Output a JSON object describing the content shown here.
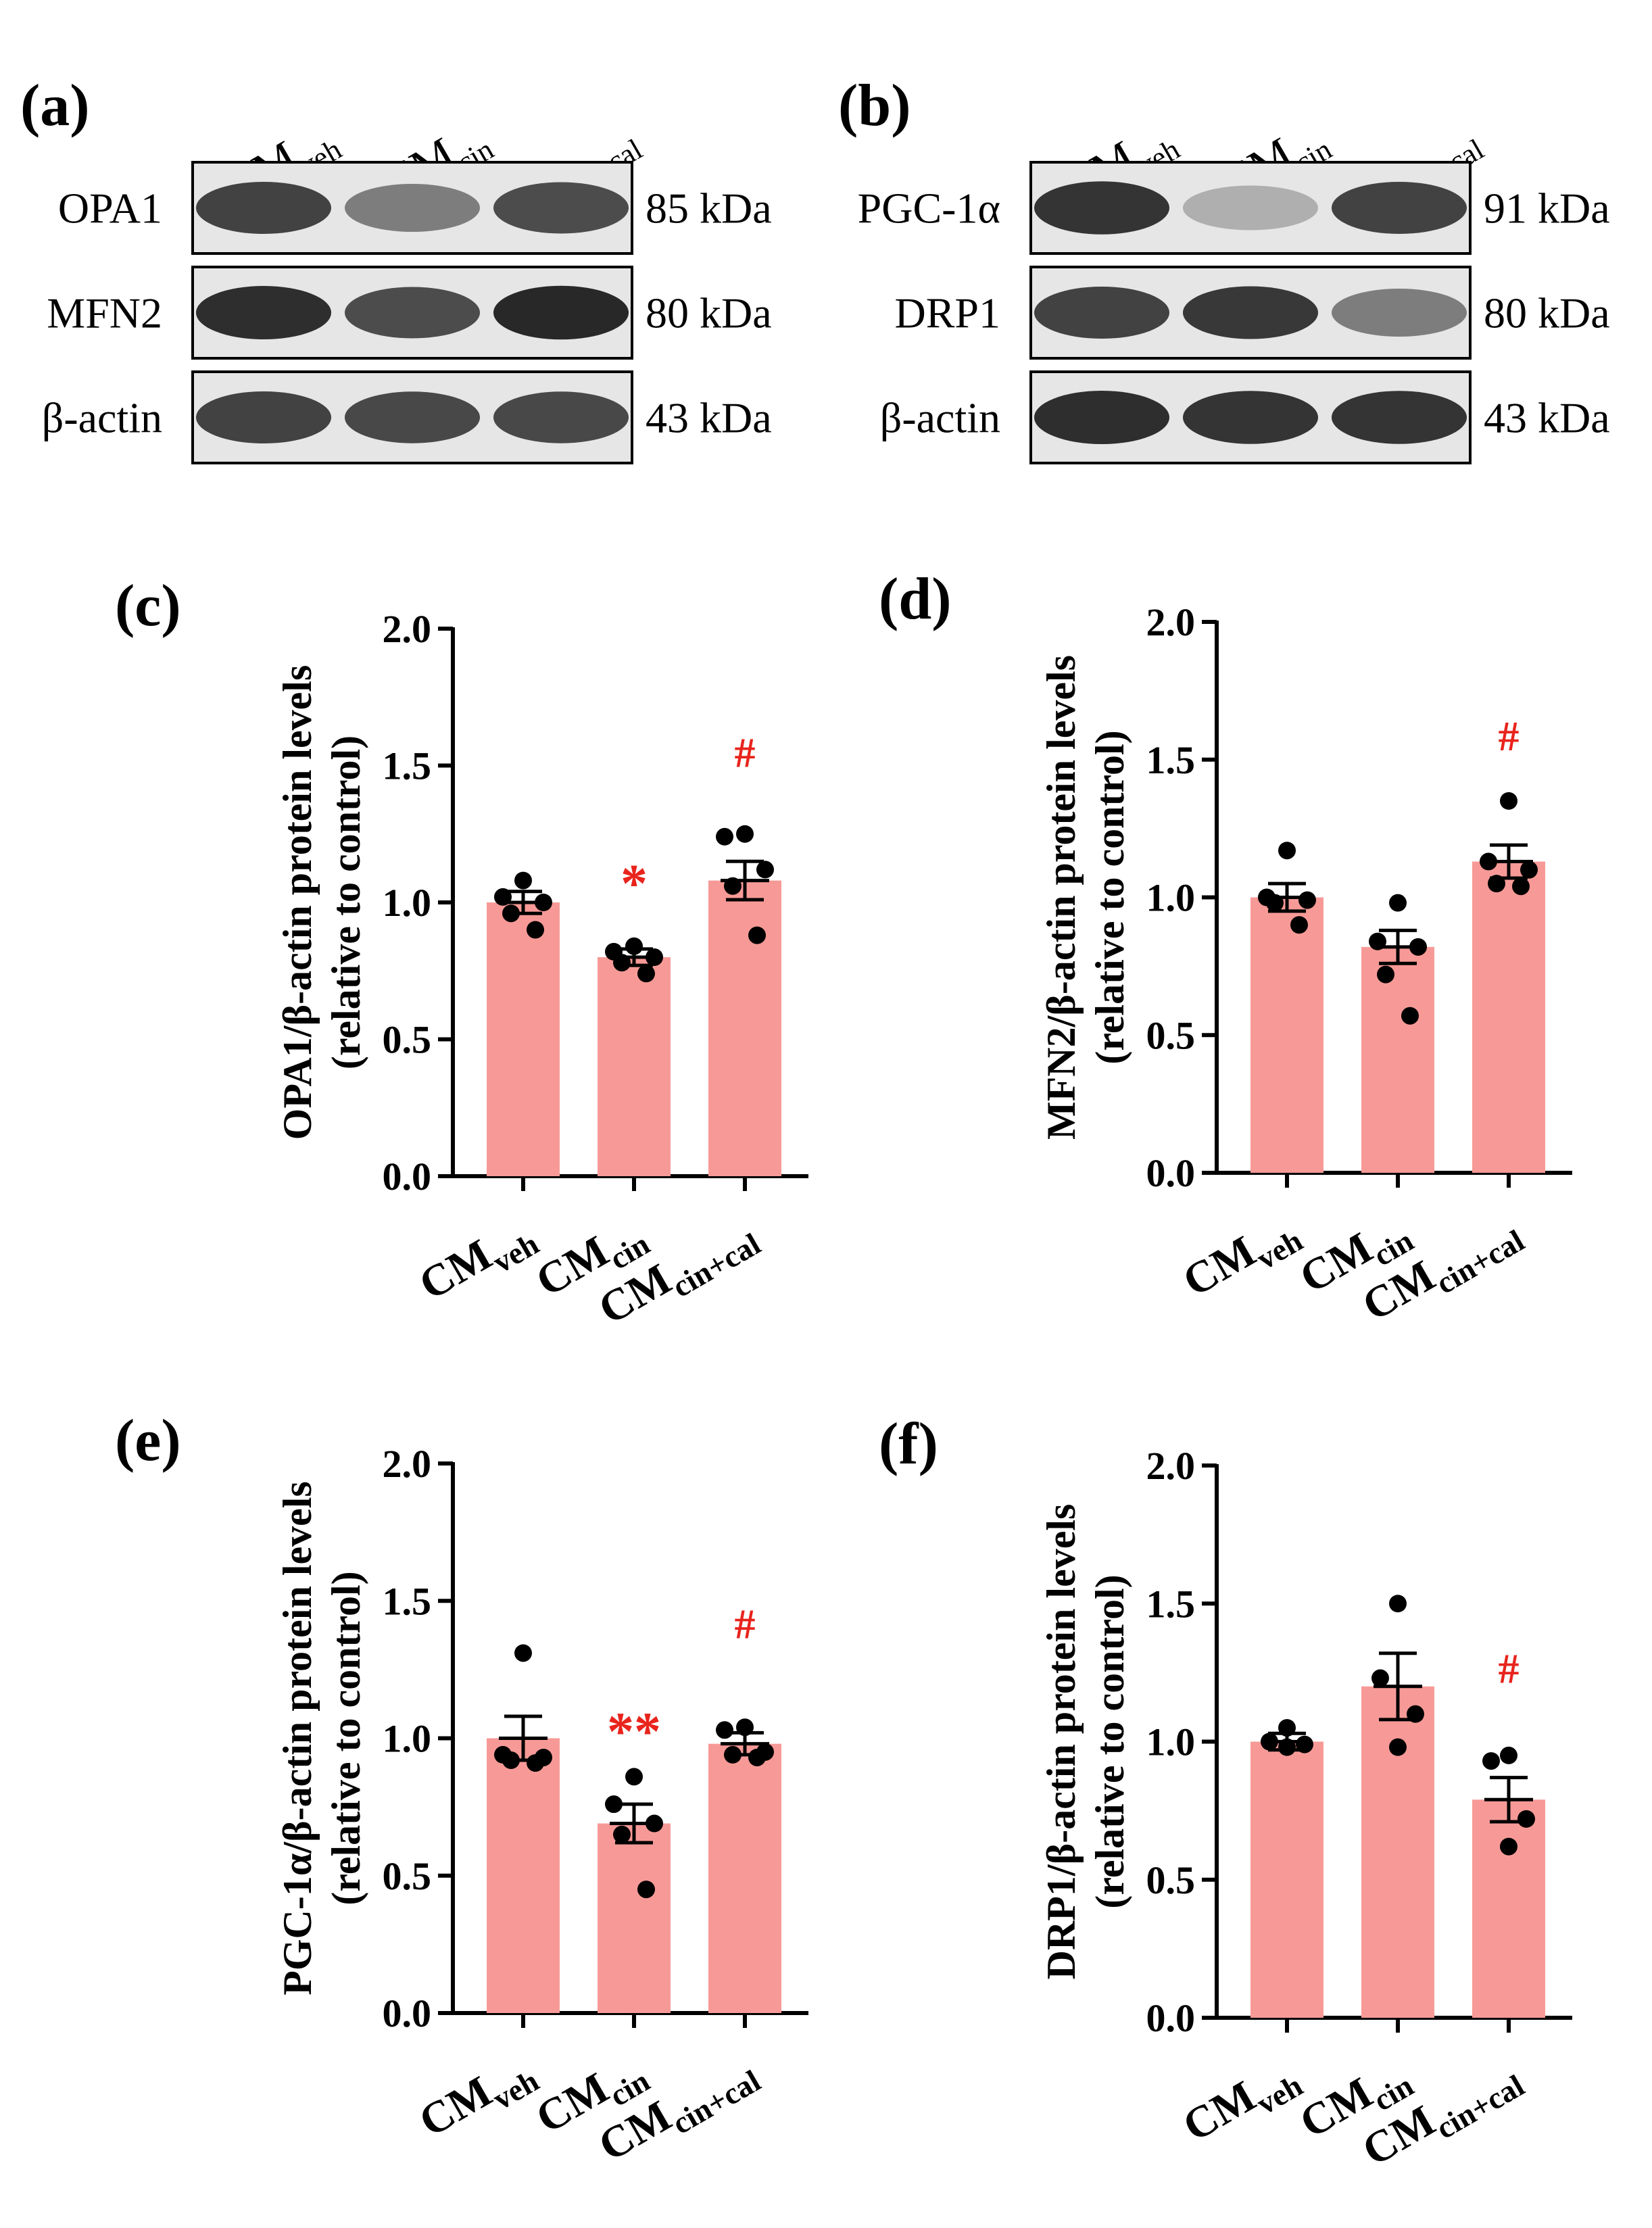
{
  "colors": {
    "bar": "#f79a97",
    "sig": "#e8241c",
    "ink": "#000000",
    "blot_bg": "#e6e6e6"
  },
  "blots": [
    {
      "panel_label": "(a)",
      "lanes": [
        {
          "base": "CM",
          "sub": "veh"
        },
        {
          "base": "CM",
          "sub": "cin"
        },
        {
          "base": "CM",
          "sub": "cin+cal"
        }
      ],
      "rows": [
        {
          "protein": "OPA1",
          "kda": "85 kDa",
          "intensity": [
            0.85,
            0.55,
            0.8
          ]
        },
        {
          "protein": "MFN2",
          "kda": "80 kDa",
          "intensity": [
            0.95,
            0.8,
            0.98
          ]
        },
        {
          "protein": "β-actin",
          "kda": "43 kDa",
          "intensity": [
            0.85,
            0.82,
            0.82
          ]
        }
      ]
    },
    {
      "panel_label": "(b)",
      "lanes": [
        {
          "base": "CM",
          "sub": "veh"
        },
        {
          "base": "CM",
          "sub": "cin"
        },
        {
          "base": "CM",
          "sub": "cin+cal"
        }
      ],
      "rows": [
        {
          "protein": "PGC-1α",
          "kda": "91 kDa",
          "intensity": [
            0.92,
            0.3,
            0.85
          ]
        },
        {
          "protein": "DRP1",
          "kda": "80 kDa",
          "intensity": [
            0.85,
            0.9,
            0.55
          ]
        },
        {
          "protein": "β-actin",
          "kda": "43 kDa",
          "intensity": [
            0.95,
            0.92,
            0.92
          ]
        }
      ]
    }
  ],
  "chart_data": [
    {
      "panel_label": "(c)",
      "type": "bar",
      "ylabel_line1": "OPA1/β-actin protein levels",
      "ylabel_line2": "(relative to control)",
      "ylim": [
        0,
        2.0
      ],
      "yticks": [
        "0.0",
        "0.5",
        "1.0",
        "1.5",
        "2.0"
      ],
      "categories": [
        {
          "base": "CM",
          "sub": "veh"
        },
        {
          "base": "CM",
          "sub": "cin"
        },
        {
          "base": "CM",
          "sub": "cin+cal"
        }
      ],
      "values": [
        1.0,
        0.8,
        1.08
      ],
      "sem": [
        0.04,
        0.03,
        0.07
      ],
      "points": [
        [
          1.08,
          1.02,
          1.0,
          0.96,
          0.9
        ],
        [
          0.84,
          0.82,
          0.8,
          0.78,
          0.74
        ],
        [
          1.25,
          1.24,
          1.12,
          1.06,
          0.88
        ]
      ],
      "annotations": [
        "",
        "*",
        "#"
      ]
    },
    {
      "panel_label": "(d)",
      "type": "bar",
      "ylabel_line1": "MFN2/β-actin protein levels",
      "ylabel_line2": "(relative to control)",
      "ylim": [
        0,
        2.0
      ],
      "yticks": [
        "0.0",
        "0.5",
        "1.0",
        "1.5",
        "2.0"
      ],
      "categories": [
        {
          "base": "CM",
          "sub": "veh"
        },
        {
          "base": "CM",
          "sub": "cin"
        },
        {
          "base": "CM",
          "sub": "cin+cal"
        }
      ],
      "values": [
        1.0,
        0.82,
        1.13
      ],
      "sem": [
        0.05,
        0.06,
        0.06
      ],
      "points": [
        [
          1.17,
          1.0,
          0.99,
          0.98,
          0.9
        ],
        [
          0.98,
          0.84,
          0.82,
          0.72,
          0.57
        ],
        [
          1.35,
          1.13,
          1.1,
          1.05,
          1.04
        ]
      ],
      "annotations": [
        "",
        "",
        "#"
      ]
    },
    {
      "panel_label": "(e)",
      "type": "bar",
      "ylabel_line1": "PGC-1α/β-actin protein levels",
      "ylabel_line2": "(relative to control)",
      "ylim": [
        0,
        2.0
      ],
      "yticks": [
        "0.0",
        "0.5",
        "1.0",
        "1.5",
        "2.0"
      ],
      "categories": [
        {
          "base": "CM",
          "sub": "veh"
        },
        {
          "base": "CM",
          "sub": "cin"
        },
        {
          "base": "CM",
          "sub": "cin+cal"
        }
      ],
      "values": [
        1.0,
        0.69,
        0.98
      ],
      "sem": [
        0.08,
        0.07,
        0.04
      ],
      "points": [
        [
          1.31,
          0.94,
          0.93,
          0.92,
          0.91
        ],
        [
          0.86,
          0.76,
          0.69,
          0.65,
          0.45
        ],
        [
          1.04,
          1.03,
          0.95,
          0.94,
          0.93
        ]
      ],
      "annotations": [
        "",
        "**",
        "#"
      ]
    },
    {
      "panel_label": "(f)",
      "type": "bar",
      "ylabel_line1": "DRP1/β-actin protein levels",
      "ylabel_line2": "(relative to control)",
      "ylim": [
        0,
        2.0
      ],
      "yticks": [
        "0.0",
        "0.5",
        "1.0",
        "1.5",
        "2.0"
      ],
      "categories": [
        {
          "base": "CM",
          "sub": "veh"
        },
        {
          "base": "CM",
          "sub": "cin"
        },
        {
          "base": "CM",
          "sub": "cin+cal"
        }
      ],
      "values": [
        1.0,
        1.2,
        0.79
      ],
      "sem": [
        0.03,
        0.12,
        0.08
      ],
      "points": [
        [
          1.05,
          1.0,
          0.99,
          0.98
        ],
        [
          1.5,
          1.23,
          1.1,
          0.98
        ],
        [
          0.95,
          0.93,
          0.72,
          0.62
        ]
      ],
      "annotations": [
        "",
        "",
        "#"
      ]
    }
  ]
}
